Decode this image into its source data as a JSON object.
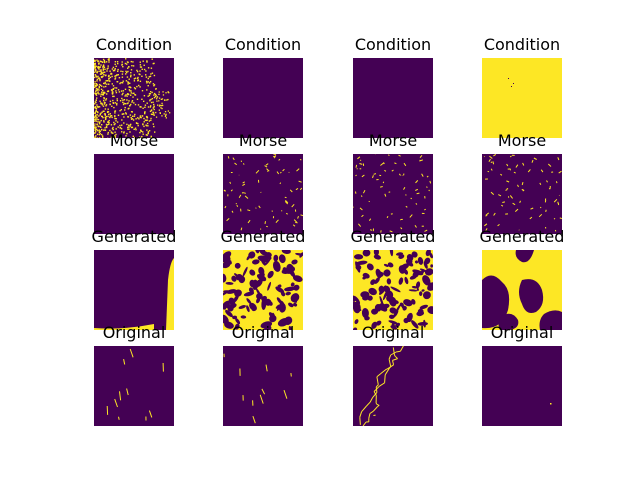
{
  "colors": {
    "low": "#440154",
    "high": "#fde725",
    "background": "#ffffff"
  },
  "rows": [
    {
      "title": "Condition",
      "panels": [
        {
          "title": "Condition",
          "fill": "scattered-points-left"
        },
        {
          "title": "Condition",
          "fill": "empty"
        },
        {
          "title": "Condition",
          "fill": "empty"
        },
        {
          "title": "Condition",
          "fill": "mostly-yellow"
        }
      ]
    },
    {
      "title": "Morse",
      "panels": [
        {
          "title": "Morse",
          "fill": "empty"
        },
        {
          "title": "Morse",
          "fill": "sparse-filaments"
        },
        {
          "title": "Morse",
          "fill": "sparse-filaments"
        },
        {
          "title": "Morse",
          "fill": "sparse-filaments"
        }
      ]
    },
    {
      "title": "Generated",
      "panels": [
        {
          "title": "Generated",
          "fill": "bottom-right-corner"
        },
        {
          "title": "Generated",
          "fill": "dense-cells"
        },
        {
          "title": "Generated",
          "fill": "dense-cells"
        },
        {
          "title": "Generated",
          "fill": "blobs"
        }
      ]
    },
    {
      "title": "Original",
      "panels": [
        {
          "title": "Original",
          "fill": "few-lines"
        },
        {
          "title": "Original",
          "fill": "few-lines"
        },
        {
          "title": "Original",
          "fill": "branching-lines"
        },
        {
          "title": "Original",
          "fill": "single-dot"
        }
      ]
    }
  ]
}
